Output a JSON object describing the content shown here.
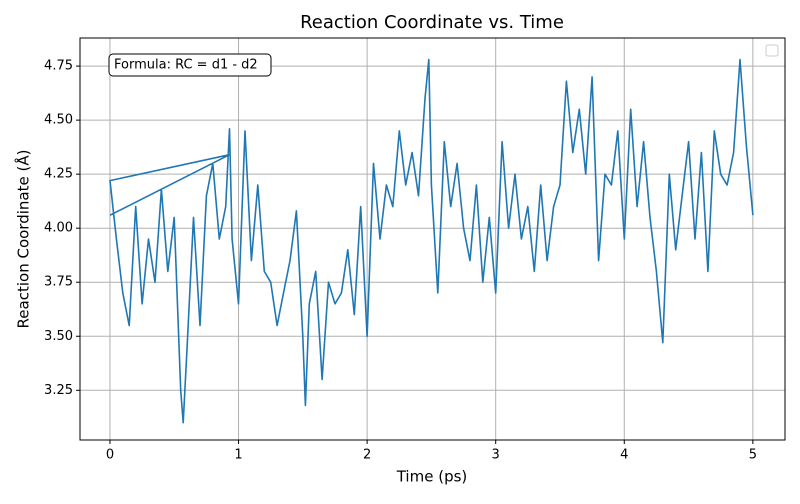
{
  "chart_data": {
    "type": "line",
    "title": "Reaction Coordinate vs. Time",
    "xlabel": "Time (ps)",
    "ylabel": "Reaction Coordinate (Å)",
    "annotation": "Formula: RC = d1 - d2",
    "x": [
      0.0,
      0.93,
      0.0,
      0.05,
      0.1,
      0.15,
      0.2,
      0.25,
      0.3,
      0.35,
      0.4,
      0.45,
      0.5,
      0.55,
      0.57,
      0.6,
      0.65,
      0.7,
      0.75,
      0.8,
      0.85,
      0.9,
      0.93,
      0.95,
      1.0,
      1.05,
      1.1,
      1.15,
      1.2,
      1.25,
      1.3,
      1.35,
      1.4,
      1.45,
      1.5,
      1.52,
      1.55,
      1.6,
      1.65,
      1.7,
      1.75,
      1.8,
      1.85,
      1.9,
      1.95,
      2.0,
      2.05,
      2.1,
      2.15,
      2.2,
      2.25,
      2.3,
      2.35,
      2.4,
      2.45,
      2.48,
      2.5,
      2.55,
      2.6,
      2.65,
      2.7,
      2.75,
      2.8,
      2.85,
      2.9,
      2.95,
      3.0,
      3.05,
      3.1,
      3.15,
      3.2,
      3.25,
      3.3,
      3.35,
      3.4,
      3.45,
      3.5,
      3.55,
      3.6,
      3.65,
      3.7,
      3.75,
      3.8,
      3.85,
      3.9,
      3.95,
      4.0,
      4.05,
      4.1,
      4.15,
      4.2,
      4.25,
      4.3,
      4.35,
      4.4,
      4.45,
      4.5,
      4.55,
      4.6,
      4.65,
      4.7,
      4.75,
      4.8,
      4.85,
      4.9,
      4.95,
      5.0
    ],
    "series": [
      {
        "color": "#1f77b4",
        "values": [
          4.06,
          4.34,
          4.22,
          3.95,
          3.7,
          3.55,
          4.1,
          3.65,
          3.95,
          3.75,
          4.18,
          3.8,
          4.05,
          3.25,
          3.1,
          3.45,
          4.05,
          3.55,
          4.15,
          4.3,
          3.95,
          4.1,
          4.46,
          3.95,
          3.65,
          4.45,
          3.85,
          4.2,
          3.8,
          3.75,
          3.55,
          3.7,
          3.85,
          4.08,
          3.5,
          3.18,
          3.65,
          3.8,
          3.3,
          3.75,
          3.65,
          3.7,
          3.9,
          3.6,
          4.1,
          3.5,
          4.3,
          3.95,
          4.2,
          4.1,
          4.45,
          4.2,
          4.35,
          4.15,
          4.6,
          4.78,
          4.2,
          3.7,
          4.4,
          4.1,
          4.3,
          4.0,
          3.85,
          4.2,
          3.75,
          4.05,
          3.7,
          4.4,
          4.0,
          4.25,
          3.95,
          4.1,
          3.8,
          4.2,
          3.85,
          4.1,
          4.2,
          4.68,
          4.35,
          4.55,
          4.25,
          4.7,
          3.85,
          4.25,
          4.2,
          4.45,
          3.95,
          4.55,
          4.1,
          4.4,
          4.05,
          3.8,
          3.47,
          4.25,
          3.9,
          4.15,
          4.4,
          3.95,
          4.35,
          3.8,
          4.45,
          4.25,
          4.2,
          4.35,
          4.78,
          4.38,
          4.06
        ]
      }
    ],
    "xlim": [
      -0.233,
      5.25
    ],
    "xticks": [
      0,
      1,
      2,
      3,
      4,
      5
    ],
    "ylim": [
      3.02,
      4.88
    ],
    "yticks": [
      3.25,
      {
        "value": 3.5,
        "label": "3.50"
      },
      3.75,
      {
        "value": 4.0,
        "label": "4.00"
      },
      4.25,
      {
        "value": 4.5,
        "label": "4.50"
      },
      4.75
    ],
    "grid": true
  }
}
